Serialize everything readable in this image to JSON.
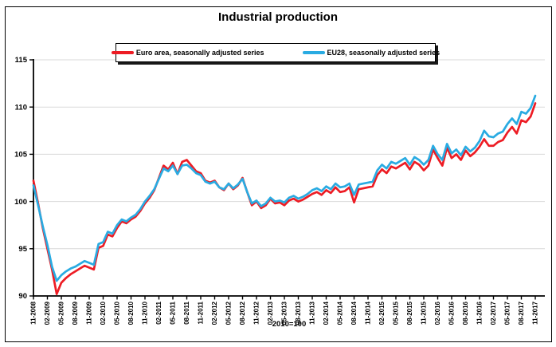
{
  "chart_data": {
    "type": "line",
    "title": "Industrial production",
    "footnote": "2010=100",
    "x_start": "11-2008",
    "x_interval": "monthly",
    "x_tick_labels": [
      "11-2008",
      "02-2009",
      "05-2009",
      "08-2009",
      "11-2009",
      "02-2010",
      "05-2010",
      "08-2010",
      "11-2010",
      "02-2011",
      "05-2011",
      "08-2011",
      "11-2011",
      "02-2012",
      "05-2012",
      "08-2012",
      "11-2012",
      "02-2013",
      "05-2013",
      "08-2013",
      "11-2013",
      "02-2014",
      "05-2014",
      "08-2014",
      "11-2014",
      "02-2015",
      "05-2015",
      "08-2015",
      "11-2015",
      "02-2016",
      "05-2016",
      "08-2016",
      "11-2016",
      "02-2017",
      "05-2017",
      "08-2017",
      "11-2017"
    ],
    "y_ticks": [
      90,
      95,
      100,
      105,
      110,
      115
    ],
    "ylim": [
      90,
      115
    ],
    "grid": "horizontal-light-gray",
    "legend_position": "top-center-boxed",
    "colors": {
      "grid": "#d9d9d9",
      "axis": "#000000",
      "text": "#000000"
    },
    "series": [
      {
        "name": "Euro area, seasonally adjusted series",
        "color": "#ed1c24",
        "values": [
          102.2,
          99.8,
          97.2,
          95.0,
          92.8,
          90.2,
          91.4,
          91.9,
          92.3,
          92.6,
          92.9,
          93.2,
          93.0,
          92.8,
          95.1,
          95.3,
          96.5,
          96.3,
          97.2,
          97.9,
          97.7,
          98.1,
          98.4,
          99.0,
          99.8,
          100.4,
          101.2,
          102.5,
          103.8,
          103.4,
          104.1,
          102.9,
          104.2,
          104.4,
          103.8,
          103.2,
          103.0,
          102.2,
          102.0,
          102.2,
          101.5,
          101.2,
          101.9,
          101.3,
          101.7,
          102.5,
          101.0,
          99.6,
          100.0,
          99.3,
          99.6,
          100.3,
          99.8,
          99.9,
          99.6,
          100.1,
          100.3,
          100.0,
          100.2,
          100.5,
          100.8,
          101.0,
          100.7,
          101.2,
          100.9,
          101.5,
          101.0,
          101.1,
          101.5,
          99.9,
          101.3,
          101.4,
          101.5,
          101.6,
          102.8,
          103.4,
          103.0,
          103.7,
          103.5,
          103.8,
          104.1,
          103.4,
          104.2,
          103.9,
          103.3,
          103.8,
          105.5,
          104.6,
          103.8,
          105.7,
          104.6,
          105.0,
          104.4,
          105.4,
          104.8,
          105.2,
          105.8,
          106.6,
          105.9,
          105.9,
          106.3,
          106.5,
          107.3,
          107.9,
          107.2,
          108.6,
          108.4,
          109.0,
          110.4
        ]
      },
      {
        "name": "EU28, seasonally adjusted series",
        "color": "#29abe2",
        "values": [
          101.7,
          99.6,
          97.4,
          95.4,
          93.1,
          91.6,
          92.2,
          92.6,
          92.9,
          93.1,
          93.4,
          93.7,
          93.5,
          93.3,
          95.5,
          95.7,
          96.8,
          96.6,
          97.5,
          98.1,
          97.9,
          98.3,
          98.6,
          99.2,
          100.0,
          100.6,
          101.3,
          102.4,
          103.5,
          103.2,
          103.8,
          102.9,
          103.8,
          103.9,
          103.5,
          103.0,
          102.8,
          102.1,
          101.9,
          102.1,
          101.5,
          101.3,
          101.9,
          101.4,
          101.8,
          102.4,
          101.0,
          99.8,
          100.1,
          99.5,
          99.8,
          100.4,
          100.0,
          100.1,
          99.9,
          100.4,
          100.6,
          100.3,
          100.5,
          100.8,
          101.2,
          101.4,
          101.1,
          101.6,
          101.3,
          101.9,
          101.5,
          101.6,
          101.9,
          100.7,
          101.8,
          101.9,
          102.0,
          102.1,
          103.3,
          103.9,
          103.5,
          104.2,
          104.0,
          104.3,
          104.6,
          103.9,
          104.7,
          104.4,
          103.9,
          104.4,
          105.9,
          105.0,
          104.4,
          106.1,
          105.1,
          105.5,
          104.9,
          105.8,
          105.3,
          105.7,
          106.4,
          107.5,
          106.9,
          106.8,
          107.2,
          107.4,
          108.2,
          108.8,
          108.2,
          109.5,
          109.3,
          109.9,
          111.2
        ]
      }
    ]
  }
}
